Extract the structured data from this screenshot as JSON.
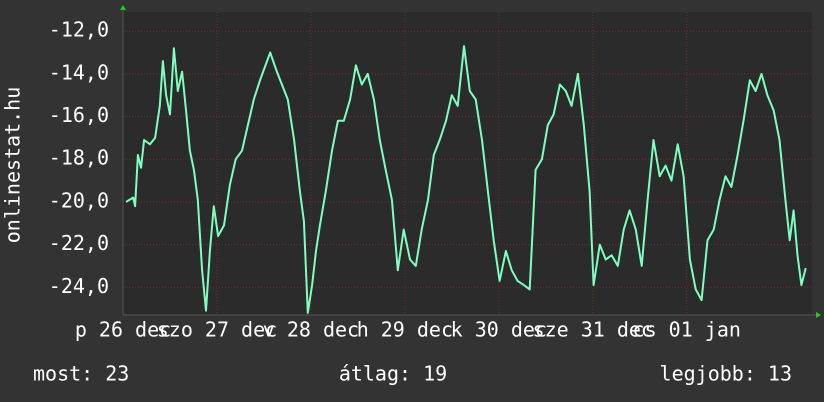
{
  "chart_data": {
    "type": "line",
    "ylabel": "onlinestat.hu",
    "x": [
      0.8,
      2.6,
      3.1,
      3.8,
      4.6,
      5.4,
      6.9,
      8.2,
      9.4,
      10.2,
      11.0,
      12.0,
      13.0,
      14.0,
      15.1,
      16.1,
      17.1,
      18.1,
      19.1,
      20.2,
      21.2,
      22.2,
      23.2,
      24.3,
      25.8,
      27.3,
      28.8,
      30.4,
      31.9,
      33.4,
      35.0,
      36.0,
      37.6,
      39.1,
      40.6,
      42.1,
      43.7,
      45.2,
      46.2,
      47.2,
      48.3,
      49.3,
      50.3,
      51.8,
      53.4,
      54.9,
      56.4,
      58.0,
      59.5,
      61.0,
      62.5,
      64.1,
      65.6,
      67.1,
      68.7,
      70.2,
      71.7,
      73.3,
      74.8,
      76.3,
      77.9,
      79.4,
      80.9,
      82.5,
      84.0,
      85.5,
      87.1,
      88.6,
      90.1,
      91.7,
      93.2,
      94.7,
      96.2,
      97.8,
      99.3,
      100.8,
      102.4,
      103.9,
      105.4,
      107.0,
      108.5,
      110.0,
      111.6,
      113.1,
      114.6,
      116.2,
      117.7,
      119.2,
      120.2,
      121.8,
      123.3,
      124.8,
      126.4,
      127.9,
      129.4,
      131.0,
      132.5,
      134.0,
      135.5,
      137.1,
      138.6,
      140.1,
      141.7,
      143.2,
      144.8,
      146.3,
      147.8,
      149.3,
      150.9,
      152.4,
      153.9,
      155.4,
      157.0,
      158.5,
      160.1,
      161.6,
      163.1,
      164.6,
      166.2,
      167.7,
      169.2,
      170.3,
      171.3,
      172.3,
      173.3,
      174.4
    ],
    "series": [
      {
        "color": "#7fffbf",
        "values": [
          -20.0,
          -19.8,
          -20.2,
          -17.8,
          -18.4,
          -17.1,
          -17.3,
          -17.0,
          -15.5,
          -13.4,
          -15.0,
          -15.9,
          -12.8,
          -14.8,
          -13.9,
          -15.7,
          -17.6,
          -18.5,
          -19.9,
          -23.2,
          -25.1,
          -22.3,
          -20.2,
          -21.6,
          -21.1,
          -19.2,
          -18.0,
          -17.6,
          -16.4,
          -15.2,
          -14.3,
          -13.8,
          -13.0,
          -13.8,
          -14.5,
          -15.2,
          -17.1,
          -19.5,
          -20.9,
          -25.2,
          -23.9,
          -22.3,
          -21.1,
          -19.5,
          -17.6,
          -16.2,
          -16.2,
          -15.2,
          -13.6,
          -14.5,
          -14.0,
          -15.2,
          -17.1,
          -18.5,
          -19.9,
          -23.2,
          -21.3,
          -22.7,
          -23.0,
          -21.3,
          -19.9,
          -17.8,
          -17.1,
          -16.2,
          -15.0,
          -15.5,
          -12.7,
          -14.8,
          -15.2,
          -17.1,
          -19.5,
          -21.8,
          -23.7,
          -22.3,
          -23.2,
          -23.7,
          -23.9,
          -24.1,
          -18.5,
          -18.0,
          -16.4,
          -15.9,
          -14.5,
          -14.8,
          -15.5,
          -14.0,
          -16.4,
          -19.5,
          -23.9,
          -22.0,
          -22.7,
          -22.5,
          -23.0,
          -21.3,
          -20.4,
          -21.3,
          -23.0,
          -19.9,
          -17.1,
          -18.8,
          -18.3,
          -19.0,
          -17.3,
          -18.8,
          -22.7,
          -24.1,
          -24.6,
          -21.8,
          -21.3,
          -19.9,
          -18.8,
          -19.3,
          -17.8,
          -16.2,
          -14.3,
          -14.8,
          -14.0,
          -15.0,
          -15.7,
          -17.1,
          -19.9,
          -21.8,
          -20.4,
          -22.5,
          -23.9,
          -23.1
        ]
      }
    ],
    "xlim": [
      0,
      176
    ],
    "xticks": [
      {
        "value": 0,
        "label": "p 26 dec"
      },
      {
        "value": 24,
        "label": "szo 27 dec"
      },
      {
        "value": 48,
        "label": "v 28 dec"
      },
      {
        "value": 72,
        "label": "h 29 dec"
      },
      {
        "value": 96,
        "label": "k 30 dec"
      },
      {
        "value": 120,
        "label": "sze 31 dec"
      },
      {
        "value": 144,
        "label": "cs 01 jan"
      }
    ],
    "ylim": [
      -25.3,
      -11.1
    ],
    "yticks": [
      {
        "value": -12,
        "label": "-12,0"
      },
      {
        "value": -14,
        "label": "-14,0"
      },
      {
        "value": -16,
        "label": "-16,0"
      },
      {
        "value": -18,
        "label": "-18,0"
      },
      {
        "value": -20,
        "label": "-20,0"
      },
      {
        "value": -22,
        "label": "-22,0"
      },
      {
        "value": -24,
        "label": "-24,0"
      }
    ],
    "grid": true,
    "footer": [
      "most: 23",
      "átlag: 19",
      "legjobb: 13"
    ]
  }
}
